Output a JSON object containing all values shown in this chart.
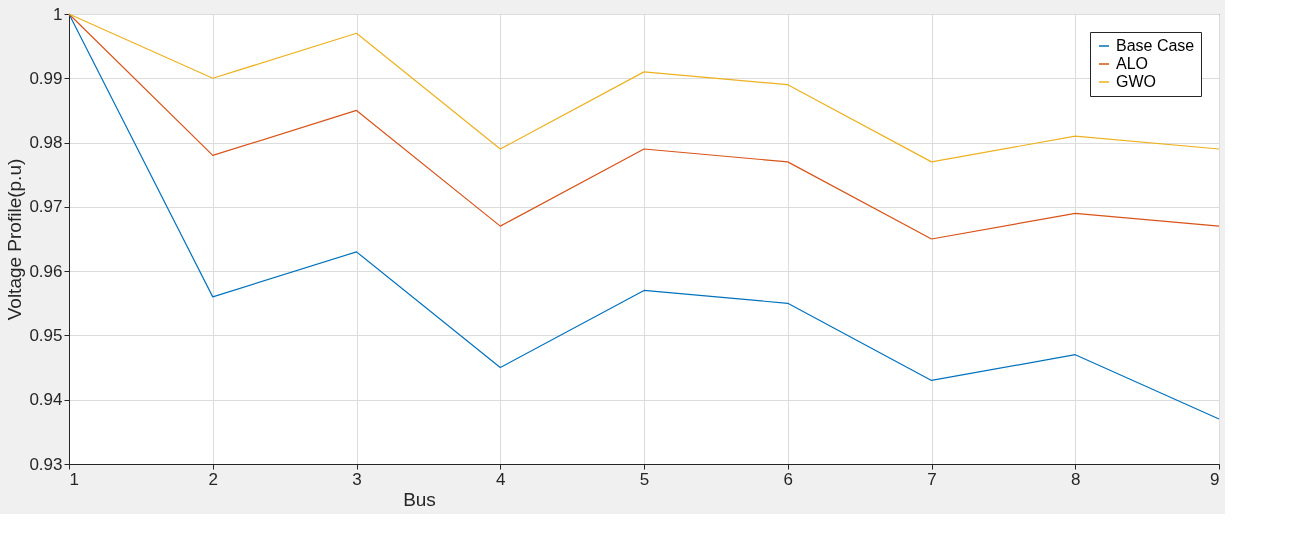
{
  "chart_data": {
    "type": "line",
    "xlabel": "Bus",
    "ylabel": "Voltage Profile(p.u)",
    "x": [
      1,
      2,
      3,
      4,
      5,
      6,
      7,
      8,
      9
    ],
    "series": [
      {
        "name": "Base Case",
        "color": "#0072bd",
        "values": [
          1,
          0.956,
          0.963,
          0.945,
          0.957,
          0.955,
          0.943,
          0.947,
          0.937
        ]
      },
      {
        "name": "ALO",
        "color": "#d95319",
        "values": [
          1,
          0.978,
          0.985,
          0.967,
          0.979,
          0.977,
          0.965,
          0.969,
          0.967
        ]
      },
      {
        "name": "GWO",
        "color": "#edb120",
        "values": [
          1,
          0.99,
          0.997,
          0.979,
          0.991,
          0.989,
          0.977,
          0.981,
          0.979
        ]
      }
    ],
    "xlim": [
      1,
      9
    ],
    "xticks": [
      1,
      2,
      3,
      4,
      5,
      6,
      7,
      8,
      9
    ],
    "ylim": [
      0.93,
      1
    ],
    "yticks": [
      0.93,
      0.94,
      0.95,
      0.96,
      0.97,
      0.98,
      0.99,
      1
    ],
    "grid": true,
    "legend": "top right",
    "marker": "none",
    "line_style": "solid"
  }
}
